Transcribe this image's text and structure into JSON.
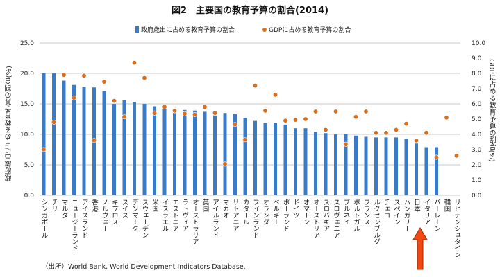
{
  "chart_data": {
    "type": "bar+scatter",
    "title": "図2　主要国の教育予算の割合(2014)",
    "ylabel": "政府歳出に占める教育予算の割合(%)",
    "y2label": "GDPに占める教育予算の割合(%)",
    "ylim": [
      0,
      25
    ],
    "y2lim": [
      0,
      10
    ],
    "yticks": [
      "0.0",
      "5.0",
      "10.0",
      "15.0",
      "20.0",
      "25.0"
    ],
    "y2ticks": [
      "0.0",
      "1.0",
      "2.0",
      "3.0",
      "4.0",
      "5.0",
      "6.0",
      "7.0",
      "8.0",
      "9.0",
      "10.0"
    ],
    "grid": true,
    "legend_placement": "top",
    "categories": [
      "シンガポール",
      "チリ",
      "マルタ",
      "ニュージーランド",
      "アイスランド",
      "香港",
      "ノルウェー",
      "キプロス",
      "スイス",
      "デンマーク",
      "スウェーデン",
      "米国",
      "イスラエル",
      "エストニア",
      "ラトヴィア",
      "オーストラリア",
      "英国",
      "アイルランド",
      "マカオ",
      "リトアニア",
      "カタール",
      "フィンランド",
      "オランダ",
      "ベルギー",
      "ポーランド",
      "ドイツ",
      "オマーン",
      "オーストリア",
      "スロバキア",
      "スロヴェニア",
      "ブルネイ",
      "ポルトガル",
      "フランス",
      "ルクセンブルグ",
      "チェコ",
      "スペイン",
      "ハンガリー",
      "日本",
      "イタリア",
      "バーレーン",
      "韓国",
      "リヒテンシュタイン"
    ],
    "series": [
      {
        "name": "政府歳出に占める教育予算の割合",
        "type": "bar",
        "axis": "left",
        "color": "#3a7bc8",
        "values": [
          20.0,
          20.0,
          18.8,
          18.1,
          17.8,
          17.7,
          17.1,
          15.0,
          15.6,
          15.3,
          15.0,
          14.6,
          14.2,
          13.5,
          14.0,
          13.9,
          13.7,
          13.1,
          13.5,
          13.3,
          12.7,
          12.2,
          11.9,
          11.9,
          11.6,
          11.0,
          11.0,
          10.4,
          10.2,
          10.0,
          10.0,
          9.8,
          9.6,
          9.5,
          9.5,
          9.5,
          9.3,
          8.5,
          7.9,
          7.9,
          null,
          null
        ]
      },
      {
        "name": "GDPに占める教育予算の割合",
        "type": "scatter",
        "axis": "right",
        "color": "#d86f1e",
        "values": [
          3.0,
          4.8,
          7.9,
          6.4,
          7.85,
          3.6,
          7.45,
          6.2,
          5.15,
          8.7,
          7.7,
          5.4,
          5.8,
          5.55,
          5.35,
          5.3,
          5.8,
          5.4,
          2.05,
          4.65,
          3.65,
          7.2,
          5.55,
          6.6,
          4.9,
          4.95,
          5.0,
          5.5,
          4.3,
          5.5,
          3.35,
          5.15,
          5.5,
          4.1,
          4.1,
          4.3,
          4.7,
          3.6,
          4.1,
          2.5,
          5.1,
          2.6
        ]
      }
    ],
    "annotation": "red-arrow pointing at 日本"
  },
  "source": "（出所）World Bank, World Development Indicators Database."
}
